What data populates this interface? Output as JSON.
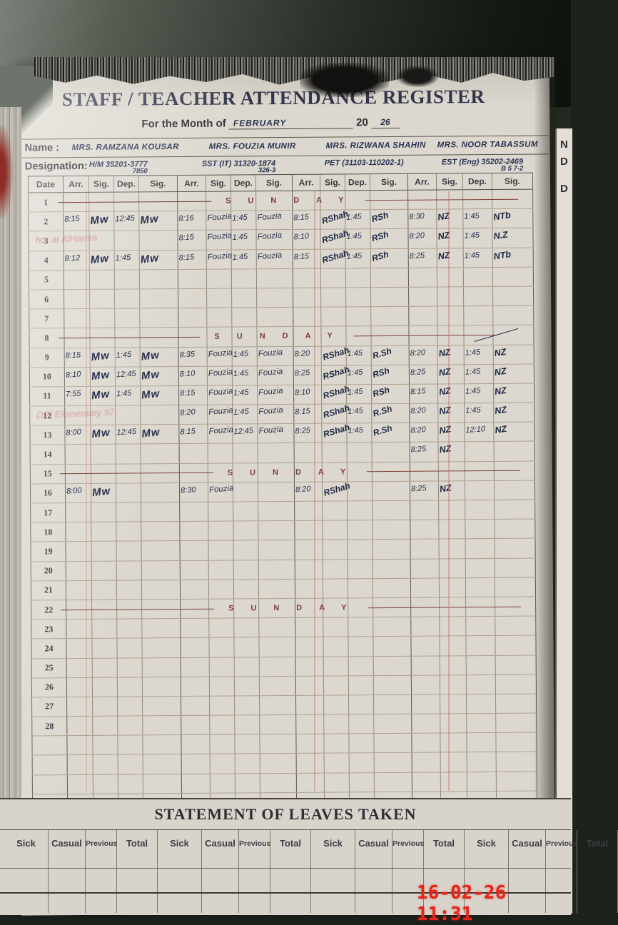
{
  "page": {
    "title": "STAFF / TEACHER ATTENDANCE REGISTER",
    "month_label": "For the Month of",
    "month_value": "FEBRUARY",
    "year_prefix": "20",
    "year_value": "26",
    "name_label": "Name :",
    "designation_label": "Designation:",
    "names": [
      "MRS. RAMZANA KOUSAR",
      "MRS. FOUZIA MUNIR",
      "MRS. RIZWANA SHAHIN",
      "MRS. NOOR TABASSUM"
    ],
    "designations": [
      {
        "main": "H/M 35201-3777",
        "sub": "7850"
      },
      {
        "main": "SST (IT) 31320-1874",
        "sub": "326-3"
      },
      {
        "main": "PET (31103-110202-1)",
        "sub": ""
      },
      {
        "main": "EST (Eng) 35202-2469",
        "sub": "B 5 7-2"
      }
    ]
  },
  "attendance": {
    "header": [
      "Date",
      "Arr.",
      "Sig.",
      "Dep.",
      "Sig.",
      "Arr.",
      "Sig.",
      "Dep.",
      "Sig.",
      "Arr.",
      "Sig.",
      "Dep.",
      "Sig.",
      "Arr.",
      "Sig.",
      "Dep.",
      "Sig."
    ],
    "sunday_text": "SUNDAY",
    "rows": [
      {
        "date": "1",
        "type": "sunday"
      },
      {
        "date": "2",
        "cells": [
          "8:15",
          "Mw",
          "12:45",
          "Mw",
          "8:16",
          "Fouzia",
          "1:45",
          "Fouzia",
          "8:15",
          "RShah",
          "1:45",
          "RSh",
          "8:30",
          "NZ",
          "1:45",
          "NTb"
        ]
      },
      {
        "date": "3",
        "cells": [
          "",
          "",
          "",
          "",
          "8:15",
          "Fouzia",
          "1:45",
          "Fouzia",
          "8:10",
          "RShah",
          "1:45",
          "RSh",
          "8:20",
          "NZ",
          "1:45",
          "N.Z"
        ],
        "stamp": "hor at AlHamra"
      },
      {
        "date": "4",
        "cells": [
          "8:12",
          "Mw",
          "1:45",
          "Mw",
          "8:15",
          "Fouzia",
          "1:45",
          "Fouzia",
          "8:15",
          "RShah",
          "1:45",
          "RSh",
          "8:25",
          "NZ",
          "1:45",
          "NTb"
        ]
      },
      {
        "date": "5"
      },
      {
        "date": "6"
      },
      {
        "date": "7"
      },
      {
        "date": "8",
        "type": "sunday",
        "slash": true
      },
      {
        "date": "9",
        "cells": [
          "8:15",
          "Mw",
          "1:45",
          "Mw",
          "8:35",
          "Fouzia",
          "1:45",
          "Fouzia",
          "8:20",
          "RShah",
          "1:45",
          "R.Sh",
          "8:20",
          "NZ",
          "1:45",
          "NZ"
        ]
      },
      {
        "date": "10",
        "cells": [
          "8:10",
          "Mw",
          "12:45",
          "Mw",
          "8:10",
          "Fouzia",
          "1:45",
          "Fouzia",
          "8:25",
          "RShah",
          "1:45",
          "RSh",
          "8:25",
          "NZ",
          "1:45",
          "NZ"
        ]
      },
      {
        "date": "11",
        "cells": [
          "7:55",
          "Mw",
          "1:45",
          "Mw",
          "8:15",
          "Fouzia",
          "1:45",
          "Fouzia",
          "8:10",
          "RShah",
          "1:45",
          "RSh",
          "8:15",
          "NZ",
          "1:45",
          "NZ"
        ]
      },
      {
        "date": "12",
        "cells": [
          "",
          "",
          "",
          "",
          "8:20",
          "Fouzia",
          "1:45",
          "Fouzia",
          "8:15",
          "RShah",
          "1:45",
          "R.Sh",
          "8:20",
          "NZ",
          "1:45",
          "NZ"
        ],
        "stamp": "DPI Elementary 97"
      },
      {
        "date": "13",
        "cells": [
          "8:00",
          "Mw",
          "12:45",
          "Mw",
          "8:15",
          "Fouzia",
          "12:45",
          "Fouzia",
          "8:25",
          "RShah",
          "1:45",
          "R.Sh",
          "8:20",
          "NZ",
          "12:10",
          "NZ"
        ]
      },
      {
        "date": "14",
        "cells": [
          "",
          "",
          "",
          "",
          "",
          "",
          "",
          "",
          "",
          "",
          "",
          "",
          "8:25",
          "NZ",
          "",
          ""
        ]
      },
      {
        "date": "15",
        "type": "sunday"
      },
      {
        "date": "16",
        "cells": [
          "8:00",
          "Mw",
          "",
          "",
          "8:30",
          "Fouzia",
          "",
          "",
          "8:20",
          "RShah",
          "",
          "",
          "8:25",
          "NZ",
          "",
          ""
        ]
      },
      {
        "date": "17"
      },
      {
        "date": "18"
      },
      {
        "date": "19"
      },
      {
        "date": "20"
      },
      {
        "date": "21"
      },
      {
        "date": "22",
        "type": "sunday"
      },
      {
        "date": "23"
      },
      {
        "date": "24"
      },
      {
        "date": "25"
      },
      {
        "date": "26"
      },
      {
        "date": "27"
      },
      {
        "date": "28"
      },
      {
        "date": ""
      },
      {
        "date": ""
      },
      {
        "date": ""
      },
      {
        "date": ""
      }
    ]
  },
  "leaves": {
    "title": "STATEMENT OF LEAVES TAKEN",
    "columns": [
      "Sick",
      "Casual",
      "Previous",
      "Total"
    ],
    "group_count": 4
  },
  "next_page": {
    "labels": [
      "N",
      "D",
      "D"
    ]
  },
  "timestamp": "16-02-26 11:31",
  "colors": {
    "ink_blue": "#2a3252",
    "sunday_maroon": "#7d4038",
    "timestamp_red": "#e5251b",
    "page_cream": "#dcd8cf",
    "desk_green": "#2b322a"
  }
}
